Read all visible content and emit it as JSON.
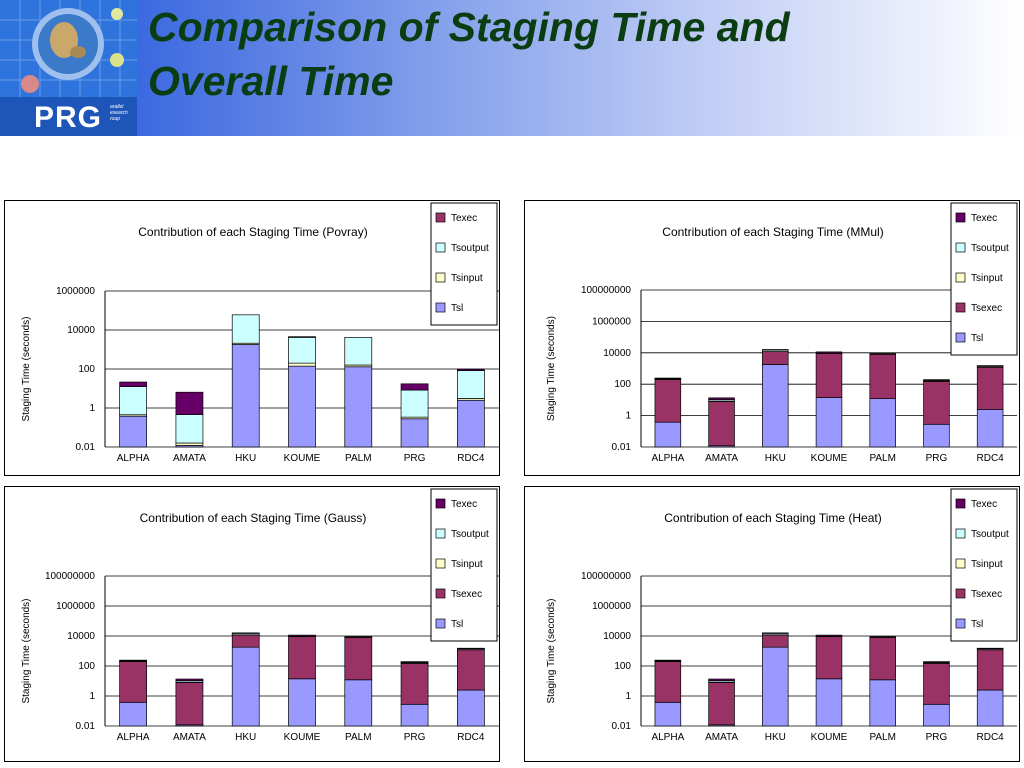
{
  "slide": {
    "title_line1": "Comparison of Staging Time and",
    "title_line2": "Overall Time",
    "logo_text": "PRG",
    "logo_sub": "arallel esearch roup"
  },
  "colors": {
    "tsl": "#9999ff",
    "tsexec": "#993366",
    "tsinput": "#ffffcc",
    "tsoutput": "#ccffff",
    "texec": "#660066",
    "grid": "#000000"
  },
  "chart_data": [
    {
      "type": "bar",
      "stacked": true,
      "log_scale": true,
      "title": "Contribution of each Staging Time (Povray)",
      "ylabel": "Staging Time (seconds)",
      "xlabel": "",
      "ylim": [
        0.01,
        1000000
      ],
      "y_ticks": [
        "1000000",
        "10000",
        "100",
        "1",
        "0.01"
      ],
      "categories": [
        "ALPHA",
        "AMATA",
        "HKU",
        "KOUME",
        "PALM",
        "PRG",
        "RDC4"
      ],
      "legend": [
        "Texec",
        "Tsoutput",
        "Tsinput",
        "Tsl"
      ],
      "legend_colors": [
        "#993366",
        "#ccffff",
        "#ffffcc",
        "#9999ff"
      ],
      "legend_position": "top-right",
      "grid": true,
      "series": [
        {
          "name": "Tsl",
          "values": [
            0.38,
            0.012,
            1800,
            140,
            130,
            0.28,
            2.5
          ]
        },
        {
          "name": "Tsinput",
          "values": [
            0.07,
            0.004,
            300,
            60,
            30,
            0.06,
            0.6
          ]
        },
        {
          "name": "Tsoutput",
          "values": [
            12,
            0.44,
            58000,
            4000,
            4000,
            8,
            80
          ]
        },
        {
          "name": "Texec",
          "values": [
            9,
            6,
            0,
            350,
            0,
            9,
            15
          ]
        }
      ]
    },
    {
      "type": "bar",
      "stacked": true,
      "log_scale": true,
      "title": "Contribution of each Staging Time (MMul)",
      "ylabel": "Staging Time (seconds)",
      "xlabel": "",
      "ylim": [
        0.01,
        100000000
      ],
      "y_ticks": [
        "100000000",
        "1000000",
        "10000",
        "100",
        "1",
        "0.01"
      ],
      "categories": [
        "ALPHA",
        "AMATA",
        "HKU",
        "KOUME",
        "PALM",
        "PRG",
        "RDC4"
      ],
      "legend": [
        "Texec",
        "Tsoutput",
        "Tsinput",
        "Tsexec",
        "Tsl"
      ],
      "legend_colors": [
        "#660066",
        "#ccffff",
        "#ffffcc",
        "#993366",
        "#9999ff"
      ],
      "legend_position": "top-right",
      "grid": true,
      "series": [
        {
          "name": "Tsl",
          "values": [
            0.38,
            0.012,
            1800,
            14,
            12,
            0.28,
            2.5
          ]
        },
        {
          "name": "Tsexec",
          "values": [
            200,
            8,
            10000,
            9000,
            8000,
            150,
            1200
          ]
        },
        {
          "name": "Tsinput",
          "values": [
            5,
            0.5,
            200,
            100,
            60,
            5,
            50
          ]
        },
        {
          "name": "Tsoutput",
          "values": [
            20,
            2,
            3000,
            500,
            400,
            20,
            200
          ]
        },
        {
          "name": "Texec",
          "values": [
            20,
            3,
            1200,
            1800,
            500,
            20,
            80
          ]
        }
      ]
    },
    {
      "type": "bar",
      "stacked": true,
      "log_scale": true,
      "title": "Contribution of each Staging Time (Gauss)",
      "ylabel": "Staging Time (seconds)",
      "xlabel": "",
      "ylim": [
        0.01,
        100000000
      ],
      "y_ticks": [
        "100000000",
        "1000000",
        "10000",
        "100",
        "1",
        "0.01"
      ],
      "categories": [
        "ALPHA",
        "AMATA",
        "HKU",
        "KOUME",
        "PALM",
        "PRG",
        "RDC4"
      ],
      "legend": [
        "Texec",
        "Tsoutput",
        "Tsinput",
        "Tsexec",
        "Tsl"
      ],
      "legend_colors": [
        "#660066",
        "#ccffff",
        "#ffffcc",
        "#993366",
        "#9999ff"
      ],
      "legend_position": "top-right",
      "grid": true,
      "series": [
        {
          "name": "Tsl",
          "values": [
            0.38,
            0.012,
            1800,
            14,
            12,
            0.28,
            2.5
          ]
        },
        {
          "name": "Tsexec",
          "values": [
            200,
            8,
            10000,
            9000,
            8000,
            150,
            1200
          ]
        },
        {
          "name": "Tsinput",
          "values": [
            5,
            0.5,
            200,
            100,
            60,
            5,
            50
          ]
        },
        {
          "name": "Tsoutput",
          "values": [
            20,
            2,
            3000,
            500,
            400,
            20,
            200
          ]
        },
        {
          "name": "Texec",
          "values": [
            20,
            3,
            1200,
            1800,
            500,
            20,
            80
          ]
        }
      ]
    },
    {
      "type": "bar",
      "stacked": true,
      "log_scale": true,
      "title": "Contribution of each Staging Time (Heat)",
      "ylabel": "Staging Time (seconds)",
      "xlabel": "",
      "ylim": [
        0.01,
        100000000
      ],
      "y_ticks": [
        "100000000",
        "1000000",
        "10000",
        "100",
        "1",
        "0.01"
      ],
      "categories": [
        "ALPHA",
        "AMATA",
        "HKU",
        "KOUME",
        "PALM",
        "PRG",
        "RDC4"
      ],
      "legend": [
        "Texec",
        "Tsoutput",
        "Tsinput",
        "Tsexec",
        "Tsl"
      ],
      "legend_colors": [
        "#660066",
        "#ccffff",
        "#ffffcc",
        "#993366",
        "#9999ff"
      ],
      "legend_position": "top-right",
      "grid": true,
      "series": [
        {
          "name": "Tsl",
          "values": [
            0.38,
            0.012,
            1800,
            14,
            12,
            0.28,
            2.5
          ]
        },
        {
          "name": "Tsexec",
          "values": [
            200,
            8,
            10000,
            9000,
            8000,
            150,
            1200
          ]
        },
        {
          "name": "Tsinput",
          "values": [
            5,
            0.5,
            200,
            100,
            60,
            5,
            50
          ]
        },
        {
          "name": "Tsoutput",
          "values": [
            20,
            2,
            3000,
            500,
            400,
            20,
            200
          ]
        },
        {
          "name": "Texec",
          "values": [
            20,
            3,
            1200,
            1800,
            500,
            20,
            80
          ]
        }
      ]
    }
  ]
}
